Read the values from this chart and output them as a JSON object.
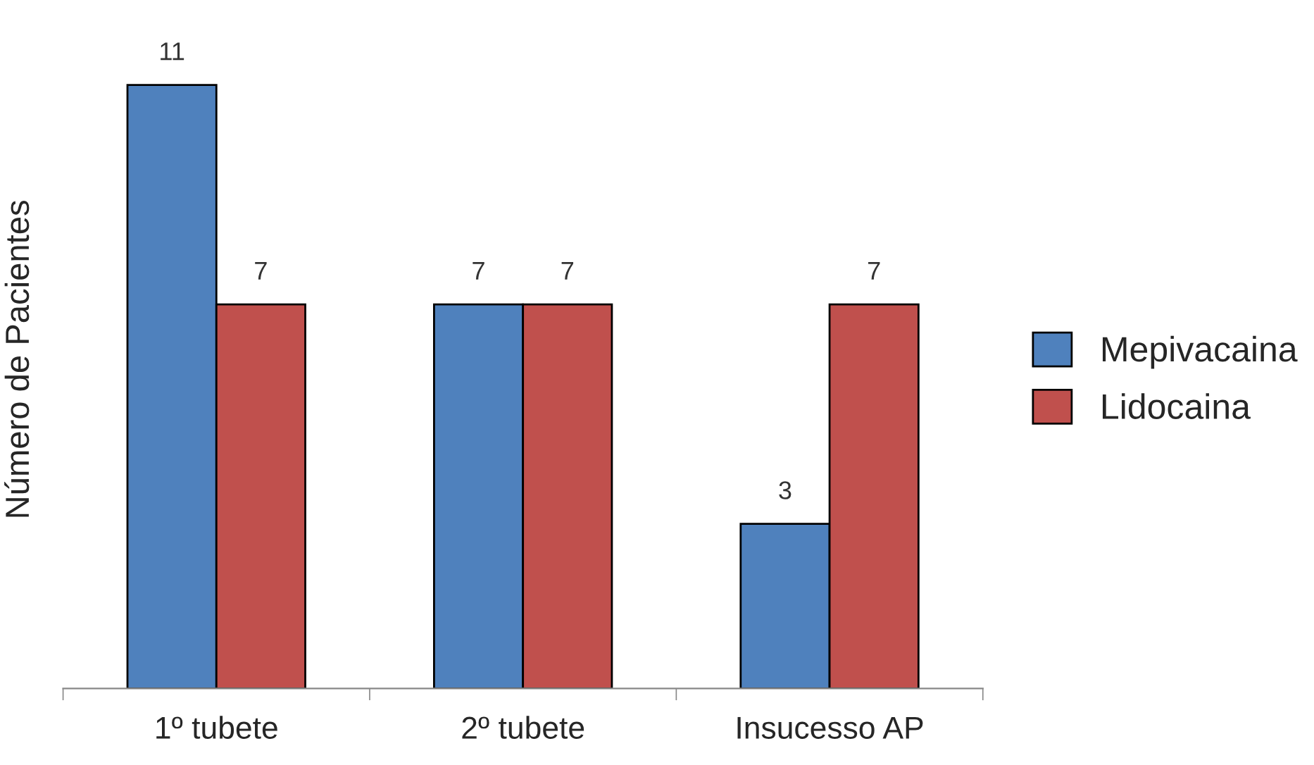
{
  "chart_data": {
    "type": "bar",
    "ylabel": "Número de Pacientes",
    "categories": [
      "1º tubete",
      "2º tubete",
      "Insucesso AP"
    ],
    "series": [
      {
        "name": "Mepivacaina",
        "color": "#4f81bd",
        "values": [
          11,
          7,
          3
        ]
      },
      {
        "name": "Lidocaina",
        "color": "#c0504d",
        "values": [
          7,
          7,
          7
        ]
      }
    ],
    "data_labels": true,
    "legend": "right",
    "grid": false
  }
}
